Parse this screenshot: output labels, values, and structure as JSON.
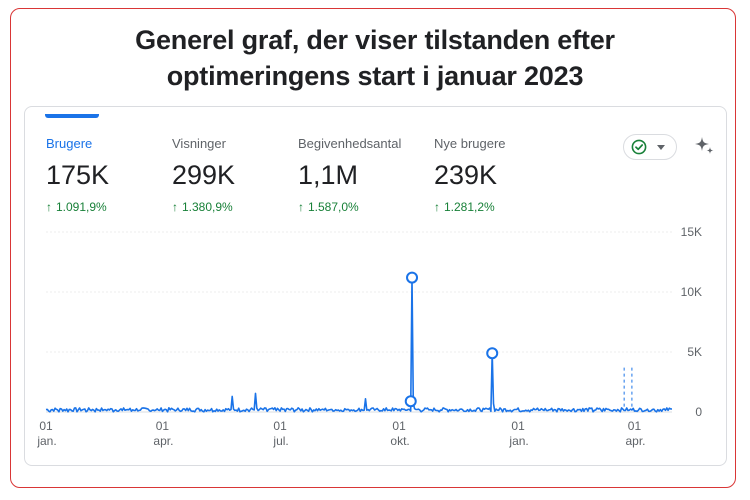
{
  "page": {
    "title_line1": "Generel graf, der viser tilstanden efter",
    "title_line2": "optimeringens start i januar 2023"
  },
  "metrics": [
    {
      "label": "Brugere",
      "value": "175K",
      "change": "1.091,9%",
      "active": true
    },
    {
      "label": "Visninger",
      "value": "299K",
      "change": "1.380,9%",
      "active": false
    },
    {
      "label": "Begivenhedsantal",
      "value": "1,1M",
      "change": "1.587,0%",
      "active": false
    },
    {
      "label": "Nye brugere",
      "value": "239K",
      "change": "1.281,2%",
      "active": false
    }
  ],
  "icons": {
    "status": "check-circle-icon",
    "dropdown": "chevron-down-icon",
    "insights": "sparkle-icon"
  },
  "colors": {
    "accent": "#1a73e8",
    "positive": "#188038",
    "frame": "#d93636"
  },
  "chart_data": {
    "type": "line",
    "y_ticks": [
      "15K",
      "10K",
      "5K",
      "0"
    ],
    "y_tick_values": [
      15000,
      10000,
      5000,
      0
    ],
    "ylim": [
      0,
      15000
    ],
    "x_ticks": [
      {
        "day": "01",
        "month": "jan."
      },
      {
        "day": "01",
        "month": "apr."
      },
      {
        "day": "01",
        "month": "jul."
      },
      {
        "day": "01",
        "month": "okt."
      },
      {
        "day": "01",
        "month": "jan."
      },
      {
        "day": "01",
        "month": "apr."
      }
    ],
    "x_range": [
      "2022-01-01",
      "2023-04-30"
    ],
    "grid": true,
    "series": [
      {
        "baseline": 200,
        "noise": 150,
        "spikes": [
          {
            "date": "2022-05-25",
            "value": 1300
          },
          {
            "date": "2022-06-12",
            "value": 1550
          },
          {
            "date": "2022-09-05",
            "value": 1100
          },
          {
            "date": "2022-10-11",
            "value": 11200
          },
          {
            "date": "2022-12-12",
            "value": 4900
          }
        ],
        "markers": [
          {
            "date": "2022-10-10",
            "value": 900
          },
          {
            "date": "2022-10-11",
            "value": 11200
          },
          {
            "date": "2022-12-12",
            "value": 4900
          }
        ]
      }
    ],
    "reference_lines": [
      {
        "date": "2023-03-24",
        "value": 3700
      },
      {
        "date": "2023-03-30",
        "value": 3700
      }
    ]
  }
}
